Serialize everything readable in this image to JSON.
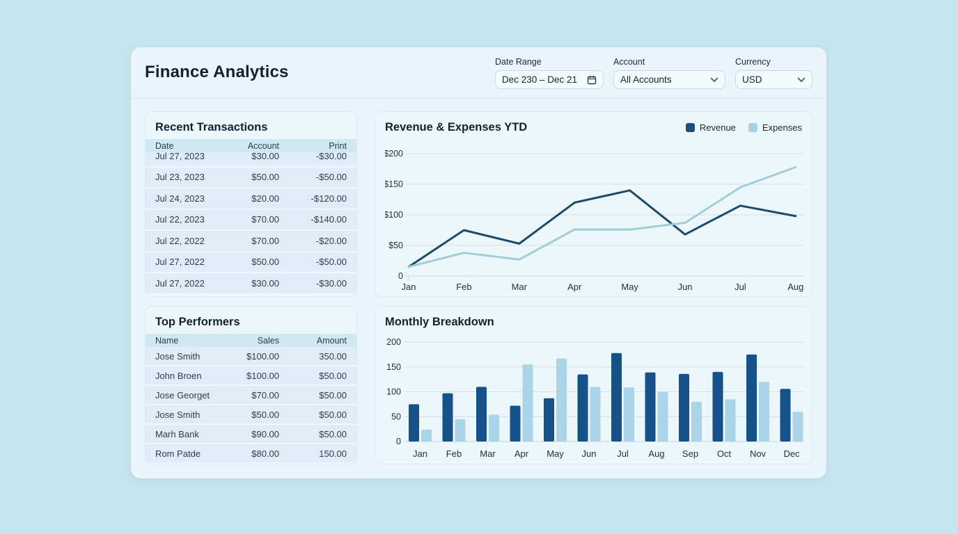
{
  "page": {
    "title": "Finance Analytics"
  },
  "filters": {
    "date_range": {
      "label": "Date Range",
      "value": "Dec 230 – Dec 21",
      "icon": "calendar-icon"
    },
    "account": {
      "label": "Account",
      "value": "All Accounts",
      "icon": "chevron-down-icon"
    },
    "currency": {
      "label": "Currency",
      "value": "USD",
      "icon": "chevron-down-icon"
    }
  },
  "transactions": {
    "title": "Recent Transactions",
    "columns": [
      "Date",
      "Account",
      "Print"
    ],
    "rows": [
      [
        "Jul 27, 2023",
        "$30.00",
        "-$30.00"
      ],
      [
        "Jul 23, 2023",
        "$50.00",
        "-$50.00"
      ],
      [
        "Jul 24, 2023",
        "$20.00",
        "-$120.00"
      ],
      [
        "Jul 22, 2023",
        "$70.00",
        "-$140.00"
      ],
      [
        "Jul 22, 2022",
        "$70.00",
        "-$20.00"
      ],
      [
        "Jul 27, 2022",
        "$50.00",
        "-$50.00"
      ],
      [
        "Jul 27, 2022",
        "$30.00",
        "-$30.00"
      ]
    ]
  },
  "performers": {
    "title": "Top Performers",
    "columns": [
      "Name",
      "Sales",
      "Amount"
    ],
    "rows": [
      [
        "Jose Smith",
        "$100.00",
        "350.00"
      ],
      [
        "John Broen",
        "$100.00",
        "$50.00"
      ],
      [
        "Jose Georget",
        "$70.00",
        "$50.00"
      ],
      [
        "Jose Smith",
        "$50.00",
        "$50.00"
      ],
      [
        "Marh Bank",
        "$90.00",
        "$50.00"
      ],
      [
        "Rom Patde",
        "$80.00",
        "150.00"
      ]
    ]
  },
  "chart_data": [
    {
      "type": "line",
      "title": "Revenue & Expenses YTD",
      "x": [
        "Jan",
        "Feb",
        "Mar",
        "Apr",
        "May",
        "Jun",
        "Jul",
        "Aug"
      ],
      "series": [
        {
          "name": "Revenue",
          "color": "#1d4a68",
          "values": [
            15,
            75,
            53,
            120,
            140,
            68,
            115,
            98
          ]
        },
        {
          "name": "Expenses",
          "color": "#a3ccd9",
          "values": [
            15,
            38,
            27,
            76,
            76,
            87,
            145,
            178
          ]
        }
      ],
      "ylim": [
        0,
        200
      ],
      "yticks": [
        {
          "value": 200,
          "label": "$200"
        },
        {
          "value": 150,
          "label": "$150"
        },
        {
          "value": 100,
          "label": "$100"
        },
        {
          "value": 50,
          "label": "$50"
        },
        {
          "value": 0,
          "label": "0"
        }
      ],
      "grid": true,
      "legend_position": "top-right"
    },
    {
      "type": "bar",
      "title": "Monthly Breakdown",
      "categories": [
        "Jan",
        "Feb",
        "Mar",
        "Apr",
        "May",
        "Jun",
        "Jul",
        "Aug",
        "Sep",
        "Oct",
        "Nov",
        "Dec"
      ],
      "series": [
        {
          "name": "Revenue",
          "color": "#17518a",
          "values": [
            75,
            97,
            110,
            72,
            87,
            135,
            178,
            139,
            136,
            140,
            175,
            106
          ]
        },
        {
          "name": "Expenses",
          "color": "#abd4e9",
          "values": [
            24,
            45,
            54,
            155,
            167,
            110,
            109,
            100,
            80,
            85,
            120,
            60
          ]
        }
      ],
      "ylim": [
        0,
        200
      ],
      "yticks": [
        {
          "value": 200,
          "label": "200"
        },
        {
          "value": 150,
          "label": "150"
        },
        {
          "value": 100,
          "label": "100"
        },
        {
          "value": 50,
          "label": "50"
        },
        {
          "value": 0,
          "label": "0"
        }
      ],
      "grid": true
    }
  ],
  "colors": {
    "page_bg": "#c6e4ef",
    "panel_bg": "#e9f5fa",
    "accent_dark": "#17518a",
    "accent_light": "#abd4e9",
    "table_header_bg": "#cfe8f3"
  }
}
